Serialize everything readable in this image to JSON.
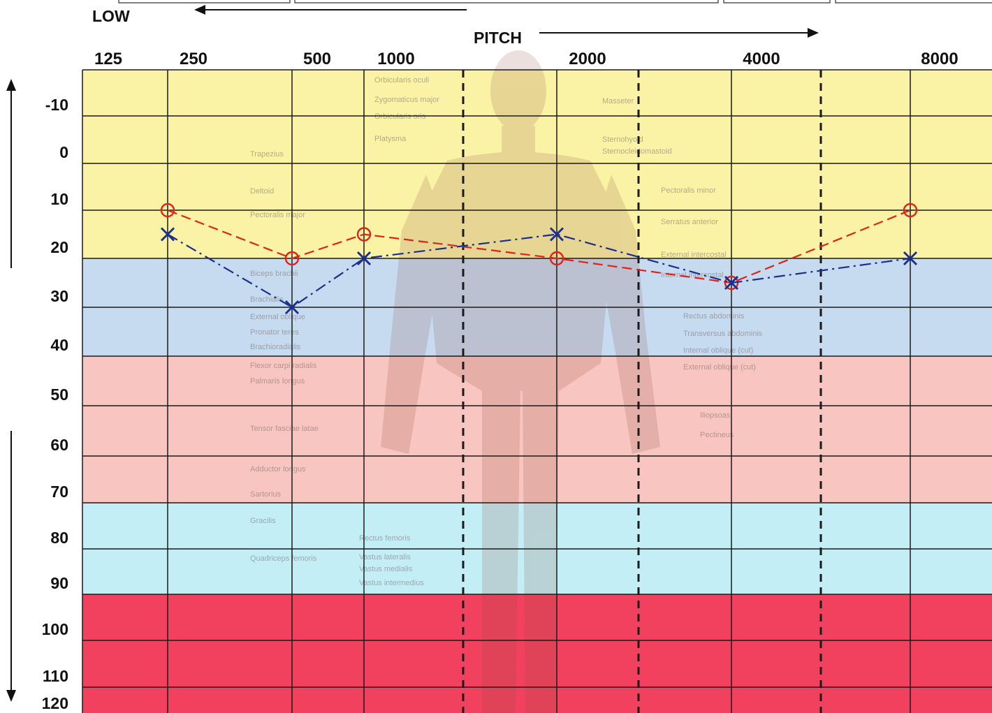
{
  "header": {
    "low_label": "LOW",
    "pitch_label": "PITCH"
  },
  "chart_data": {
    "type": "line",
    "title": "",
    "xlabel": "PITCH",
    "ylabel": "",
    "x_scale": "log2",
    "x_ticks": [
      "125",
      "250",
      "500",
      "1000",
      "2000",
      "4000",
      "8000"
    ],
    "y_ticks": [
      "-10",
      "0",
      "10",
      "20",
      "30",
      "40",
      "50",
      "60",
      "70",
      "80",
      "90",
      "100",
      "110",
      "120"
    ],
    "ylim": [
      -10,
      120
    ],
    "y_inverted": true,
    "grid": true,
    "solid_gridlines_x": [
      250,
      500,
      1000,
      2000,
      4000,
      8000
    ],
    "dashed_gridlines_x": [
      1500,
      3000,
      6000
    ],
    "bands": [
      {
        "from": -20,
        "to": 20,
        "color": "#faf3a6"
      },
      {
        "from": 20,
        "to": 40,
        "color": "#c6daf0"
      },
      {
        "from": 40,
        "to": 70,
        "color": "#f8c5c0"
      },
      {
        "from": 70,
        "to": 90,
        "color": "#c3eef6"
      },
      {
        "from": 90,
        "to": 120,
        "color": "#f2415e"
      }
    ],
    "series": [
      {
        "marker": "o",
        "color": "#e02418",
        "x": [
          250,
          500,
          1000,
          2000,
          4000,
          8000
        ],
        "y": [
          10,
          20,
          15,
          20,
          25,
          10
        ]
      },
      {
        "marker": "x",
        "color": "#1b2f8f",
        "x": [
          250,
          500,
          1000,
          2000,
          4000,
          8000
        ],
        "y": [
          15,
          30,
          20,
          15,
          25,
          20
        ]
      }
    ]
  },
  "background_labels": [
    "Orbicularis oculi",
    "Zygomaticus major",
    "Orbicularis oris",
    "Platysma",
    "Trapezius",
    "Deltoid",
    "Pectoralis major",
    "Biceps brachii",
    "Brachialis",
    "External oblique",
    "Pronator teres",
    "Brachioradialis",
    "Flexor carpi radialis",
    "Palmaris longus",
    "Tensor fasciae latae",
    "Adductor longus",
    "Sartorius",
    "Gracilis",
    "Quadriceps femoris",
    "Rectus femoris",
    "Vastus lateralis",
    "Vastus medialis",
    "Vastus intermedius",
    "Masseter",
    "Sternohyoid",
    "Sternocleidomastoid",
    "Pectoralis minor",
    "Serratus anterior",
    "External intercostal",
    "Internal intercostal",
    "Rectus abdominis",
    "Transversus abdominis",
    "Internal oblique (cut)",
    "External oblique (cut)",
    "Iliopsoas",
    "Pectineus"
  ],
  "colors": {
    "grid": "#1a1a1a",
    "arrow": "#111111"
  }
}
